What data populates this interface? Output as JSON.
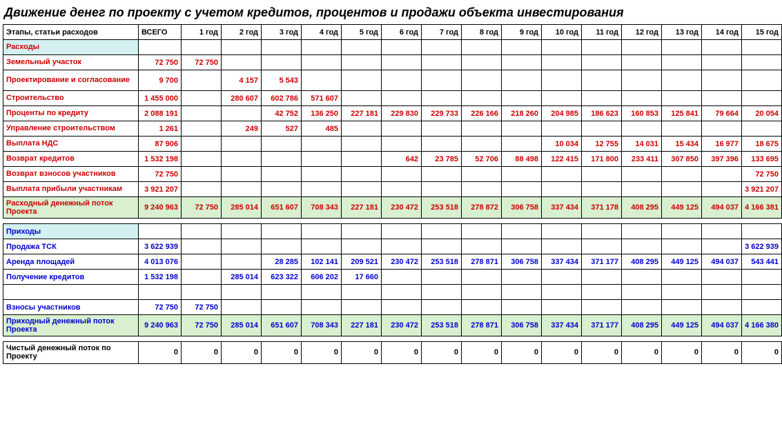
{
  "colors": {
    "red": "#cc0000",
    "blue": "#0000cc",
    "black": "#000000",
    "header_bg": "#d4f0f0",
    "subtotal_bg": "#d8f0d0"
  },
  "title": "Движение денег по проекту с учетом кредитов, процентов и продажи объекта инвестирования",
  "headers": {
    "label": "Этапы, статьи расходов",
    "total": "ВСЕГО",
    "years": [
      "1 год",
      "2 год",
      "3 год",
      "4 год",
      "5 год",
      "6 год",
      "7 год",
      "8 год",
      "9 год",
      "10 год",
      "11 год",
      "12 год",
      "13 год",
      "14 год",
      "15 год"
    ]
  },
  "sections": [
    {
      "heading": {
        "text": "Расходы",
        "color": "red",
        "bg": "header_bg"
      },
      "rows": [
        {
          "label": "Земельный участок",
          "color": "red",
          "cells": [
            "72 750",
            "72 750",
            "",
            "",
            "",
            "",
            "",
            "",
            "",
            "",
            "",
            "",
            "",
            "",
            "",
            ""
          ]
        },
        {
          "label": "Проектирование и согласование",
          "color": "red",
          "tall": true,
          "cells": [
            "9 700",
            "",
            "4 157",
            "5 543",
            "",
            "",
            "",
            "",
            "",
            "",
            "",
            "",
            "",
            "",
            "",
            ""
          ]
        },
        {
          "label": "Строительство",
          "color": "red",
          "cells": [
            "1 455 000",
            "",
            "280 607",
            "602 786",
            "571 607",
            "",
            "",
            "",
            "",
            "",
            "",
            "",
            "",
            "",
            "",
            ""
          ]
        },
        {
          "label": "Проценты по кредиту",
          "color": "red",
          "cells": [
            "2 088 191",
            "",
            "",
            "42 752",
            "136 250",
            "227 181",
            "229 830",
            "229 733",
            "226 166",
            "218 260",
            "204 985",
            "186 623",
            "160 853",
            "125 841",
            "79 664",
            "20 054"
          ]
        },
        {
          "label": "Управление строительством",
          "color": "red",
          "cells": [
            "1 261",
            "",
            "249",
            "527",
            "485",
            "",
            "",
            "",
            "",
            "",
            "",
            "",
            "",
            "",
            "",
            ""
          ]
        },
        {
          "label": "Выплата НДС",
          "color": "red",
          "cells": [
            "87 906",
            "",
            "",
            "",
            "",
            "",
            "",
            "",
            "",
            "",
            "10 034",
            "12 755",
            "14 031",
            "15 434",
            "16 977",
            "18 675"
          ]
        },
        {
          "label": "Возврат кредитов",
          "color": "red",
          "cells": [
            "1 532 198",
            "",
            "",
            "",
            "",
            "",
            "642",
            "23 785",
            "52 706",
            "88 498",
            "122 415",
            "171 800",
            "233 411",
            "307 850",
            "397 396",
            "133 695"
          ]
        },
        {
          "label": "Возврат взносов участников",
          "color": "red",
          "cells": [
            "72 750",
            "",
            "",
            "",
            "",
            "",
            "",
            "",
            "",
            "",
            "",
            "",
            "",
            "",
            "",
            "72 750"
          ]
        },
        {
          "label": "Выплата прибыли участникам",
          "color": "red",
          "cells": [
            "3 921 207",
            "",
            "",
            "",
            "",
            "",
            "",
            "",
            "",
            "",
            "",
            "",
            "",
            "",
            "",
            "3 921 207"
          ]
        },
        {
          "label": "Расходный денежный поток Проекта",
          "color": "red",
          "bg": "subtotal_bg",
          "tall": true,
          "cells": [
            "9 240 963",
            "72 750",
            "285 014",
            "651 607",
            "708 343",
            "227 181",
            "230 472",
            "253 518",
            "278 872",
            "306 758",
            "337 434",
            "371 178",
            "408 295",
            "449 125",
            "494 037",
            "4 166 381"
          ]
        }
      ]
    },
    {
      "spacer": true,
      "heading": {
        "text": "Приходы",
        "color": "blue",
        "bg": "header_bg"
      },
      "rows": [
        {
          "label": "Продажа  ТСК",
          "color": "blue",
          "cells": [
            "3 622 939",
            "",
            "",
            "",
            "",
            "",
            "",
            "",
            "",
            "",
            "",
            "",
            "",
            "",
            "",
            "3 622 939"
          ]
        },
        {
          "label": "Аренда площадей",
          "color": "blue",
          "cells": [
            "4 013 076",
            "",
            "",
            "28 285",
            "102 141",
            "209 521",
            "230 472",
            "253 518",
            "278 871",
            "306 758",
            "337 434",
            "371 177",
            "408 295",
            "449 125",
            "494 037",
            "543 441"
          ]
        },
        {
          "label": "Получение кредитов",
          "color": "blue",
          "cells": [
            "1 532 198",
            "",
            "285 014",
            "623 322",
            "606 202",
            "17 660",
            "",
            "",
            "",
            "",
            "",
            "",
            "",
            "",
            "",
            ""
          ]
        },
        {
          "label": "",
          "color": "blue",
          "cells": [
            "",
            "",
            "",
            "",
            "",
            "",
            "",
            "",
            "",
            "",
            "",
            "",
            "",
            "",
            "",
            ""
          ]
        },
        {
          "label": "Взносы участников",
          "color": "blue",
          "cells": [
            "72 750",
            "72 750",
            "",
            "",
            "",
            "",
            "",
            "",
            "",
            "",
            "",
            "",
            "",
            "",
            "",
            ""
          ]
        },
        {
          "label": "Приходный денежный поток Проекта",
          "color": "blue",
          "bg": "subtotal_bg",
          "tall": true,
          "cells": [
            "9 240 963",
            "72 750",
            "285 014",
            "651 607",
            "708 343",
            "227 181",
            "230 472",
            "253 518",
            "278 871",
            "306 758",
            "337 434",
            "371 177",
            "408 295",
            "449 125",
            "494 037",
            "4 166 380"
          ]
        }
      ]
    },
    {
      "spacer": true,
      "rows": [
        {
          "label": "Чистый денежный поток по Проекту",
          "color": "black",
          "tall": true,
          "cells": [
            "0",
            "0",
            "0",
            "0",
            "0",
            "0",
            "0",
            "0",
            "0",
            "0",
            "0",
            "0",
            "0",
            "0",
            "0",
            "0"
          ]
        }
      ]
    }
  ]
}
